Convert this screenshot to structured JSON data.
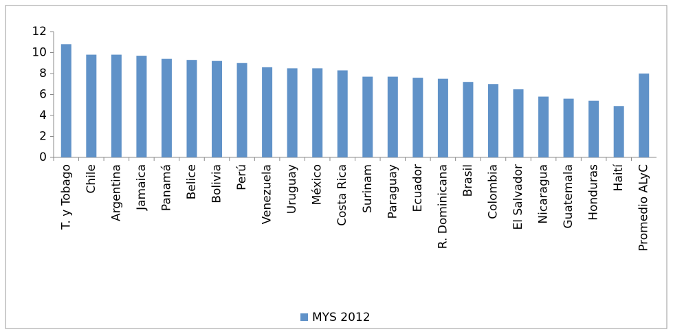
{
  "chart_data": {
    "type": "bar",
    "categories": [
      "T. y Tobago",
      "Chile",
      "Argentina",
      "Jamaica",
      "Panamá",
      "Belice",
      "Bolivia",
      "Perú",
      "Venezuela",
      "Uruguay",
      "México",
      "Costa Rica",
      "Surinam",
      "Paraguay",
      "Ecuador",
      "R. Dominicana",
      "Brasil",
      "Colombia",
      "El Salvador",
      "Nicaragua",
      "Guatemala",
      "Honduras",
      "Haití",
      "Promedio ALyC"
    ],
    "series": [
      {
        "name": "MYS 2012",
        "color": "#6092c8",
        "values": [
          10.8,
          9.8,
          9.8,
          9.7,
          9.4,
          9.3,
          9.2,
          9.0,
          8.6,
          8.5,
          8.5,
          8.3,
          7.7,
          7.7,
          7.6,
          7.5,
          7.2,
          7.0,
          6.5,
          5.8,
          5.6,
          5.4,
          4.9,
          8.0
        ]
      }
    ],
    "ylim": [
      0,
      12
    ],
    "yticks": [
      0,
      2,
      4,
      6,
      8,
      10,
      12
    ],
    "legend": "bottom"
  }
}
